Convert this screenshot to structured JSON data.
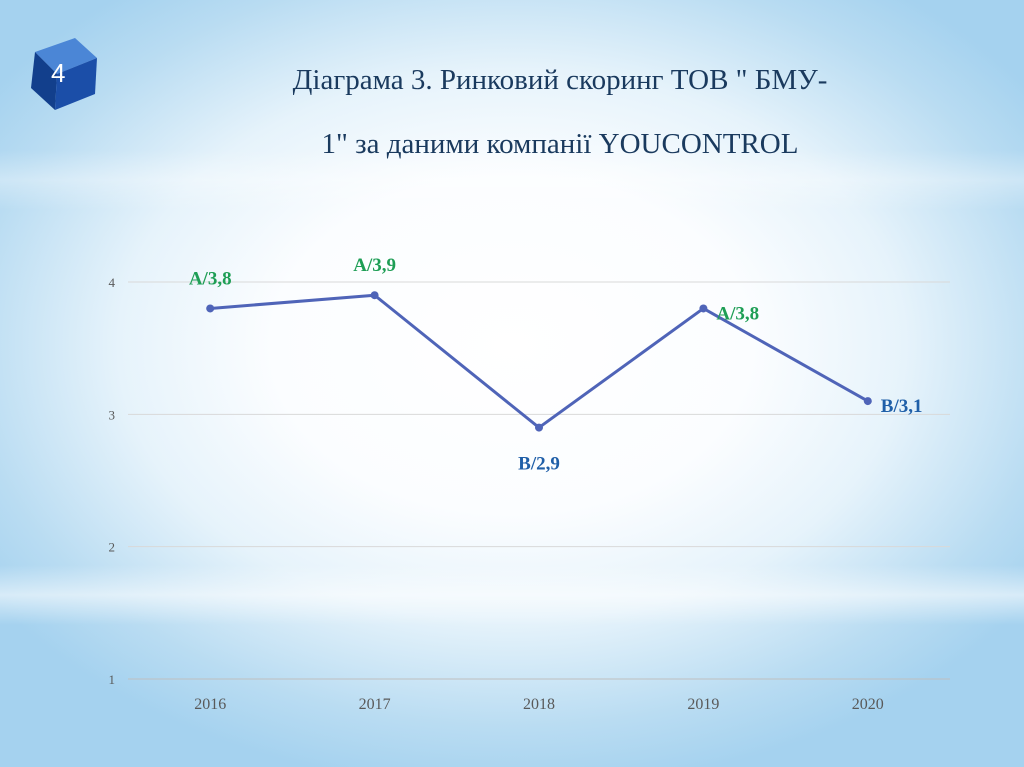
{
  "slide": {
    "number": "4"
  },
  "title": {
    "line1": "Діаграма 3. Ринковий скоринг ТОВ \" БМУ-",
    "line2": "1\" за даними компанії YOUCONTROL"
  },
  "colors": {
    "line": "#4f64b8",
    "label_green": "#1e9e55",
    "label_blue": "#1f5fa8",
    "grid": "#d9d9d9",
    "badge": "#1b4ea8"
  },
  "chart_data": {
    "type": "line",
    "title": "Діаграма 3. Ринковий скоринг ТОВ \" БМУ-1\" за даними компанії YOUCONTROL",
    "categories": [
      "2016",
      "2017",
      "2018",
      "2019",
      "2020"
    ],
    "series": [
      {
        "values": [
          3.8,
          3.9,
          2.9,
          3.8,
          3.1
        ]
      }
    ],
    "data_labels": [
      "A/3,8",
      "A/3,9",
      "B/2,9",
      "A/3,8",
      "B/3,1"
    ],
    "label_colors": [
      "green",
      "green",
      "blue",
      "green",
      "blue"
    ],
    "y_ticks": [
      1,
      2,
      3,
      4
    ],
    "ylim": [
      1,
      4.5
    ],
    "grid": true,
    "legend": "none"
  }
}
